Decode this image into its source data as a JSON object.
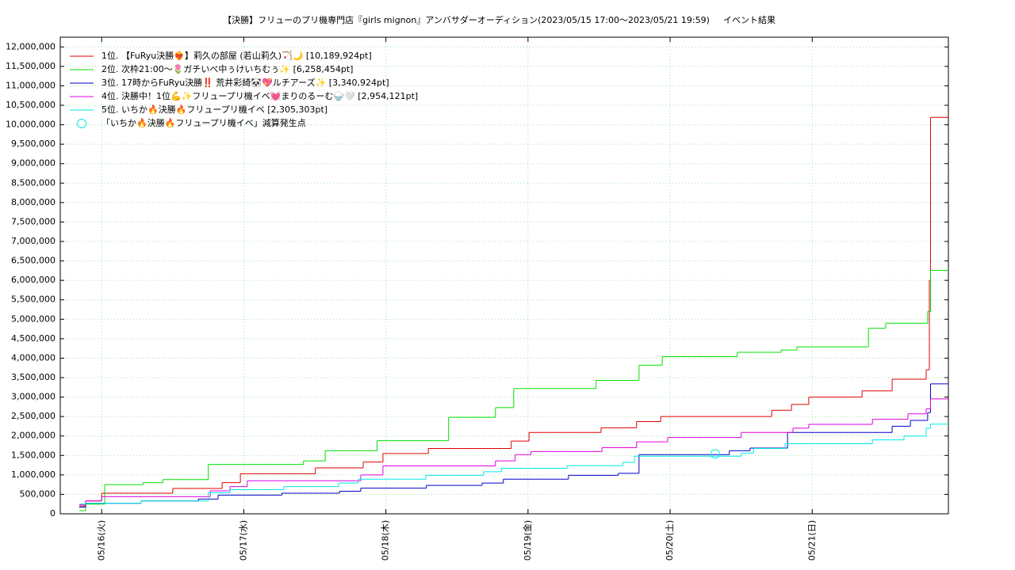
{
  "chart_data": {
    "type": "step",
    "title": "【決勝】フリューのプリ機専門店『girls mignon』アンバサダーオーディション(2023/05/15 17:00〜2023/05/21 19:59)",
    "subtitle": "イベント結果",
    "xlim": [
      "05/15 17:00",
      "05/21 23:00"
    ],
    "xticks": [
      {
        "value": "05/16 00:00",
        "label": "05/16(火)"
      },
      {
        "value": "05/17 00:00",
        "label": "05/17(水)"
      },
      {
        "value": "05/18 00:00",
        "label": "05/18(木)"
      },
      {
        "value": "05/19 00:00",
        "label": "05/19(金)"
      },
      {
        "value": "05/20 00:00",
        "label": "05/20(土)"
      },
      {
        "value": "05/21 00:00",
        "label": "05/21(日)"
      }
    ],
    "ylim": [
      0,
      12250000
    ],
    "yticks": [
      0,
      {
        "value": 500000,
        "label": "500,000"
      },
      {
        "value": 1000000,
        "label": "1,000,000"
      },
      {
        "value": 1500000,
        "label": "1,500,000"
      },
      {
        "value": 2000000,
        "label": "2,000,000"
      },
      {
        "value": 2500000,
        "label": "2,500,000"
      },
      {
        "value": 3000000,
        "label": "3,000,000"
      },
      {
        "value": 3500000,
        "label": "3,500,000"
      },
      {
        "value": 4000000,
        "label": "4,000,000"
      },
      {
        "value": 4500000,
        "label": "4,500,000"
      },
      {
        "value": 5000000,
        "label": "5,000,000"
      },
      {
        "value": 5500000,
        "label": "5,500,000"
      },
      {
        "value": 6000000,
        "label": "6,000,000"
      },
      {
        "value": 6500000,
        "label": "6,500,000"
      },
      {
        "value": 7000000,
        "label": "7,000,000"
      },
      {
        "value": 7500000,
        "label": "7,500,000"
      },
      {
        "value": 8000000,
        "label": "8,000,000"
      },
      {
        "value": 8500000,
        "label": "8,500,000"
      },
      {
        "value": 9000000,
        "label": "9,000,000"
      },
      {
        "value": 9500000,
        "label": "9,500,000"
      },
      {
        "value": 10000000,
        "label": "10,000,000"
      },
      {
        "value": 10500000,
        "label": "10,500,000"
      },
      {
        "value": 11000000,
        "label": "11,000,000"
      },
      {
        "value": 11500000,
        "label": "11,500,000"
      },
      {
        "value": 12000000,
        "label": "12,000,000"
      }
    ],
    "grid": true,
    "legend": "upper left",
    "series": [
      {
        "name": "1位. 【FuRyu決勝❤️‍🔥】莉久の部屋 (若山莉久)🏹🌙 [10,189,924pt]",
        "color": "#e00000",
        "x": [
          "05/15 20:13",
          "05/15 21:17",
          "05/16 00:00",
          "05/16 12:00",
          "05/16 20:20",
          "05/16 23:25",
          "05/17 12:05",
          "05/17 20:10",
          "05/17 23:30",
          "05/18 07:10",
          "05/18 21:10",
          "05/19 00:10",
          "05/19 12:20",
          "05/19 18:20",
          "05/19 22:25",
          "05/20 17:10",
          "05/20 20:30",
          "05/20 23:25",
          "05/21 08:25",
          "05/21 13:30",
          "05/21 19:15",
          "05/21 19:47",
          "05/21 19:59"
        ],
        "values": [
          200000,
          330000,
          530000,
          650000,
          800000,
          1030000,
          1180000,
          1330000,
          1550000,
          1680000,
          1870000,
          2090000,
          2210000,
          2370000,
          2500000,
          2660000,
          2810000,
          3000000,
          3160000,
          3460000,
          3700000,
          6000000,
          10189924
        ]
      },
      {
        "name": "2位. 次枠21:00〜🌷ガチいべ中ぅけいちむぅ✨ [6,258,454pt]",
        "color": "#00e000",
        "x": [
          "05/15 20:13",
          "05/15 21:17",
          "05/16 00:30",
          "05/16 07:00",
          "05/16 10:20",
          "05/16 18:00",
          "05/17 10:05",
          "05/17 13:45",
          "05/17 22:30",
          "05/18 10:35",
          "05/18 18:30",
          "05/18 21:35",
          "05/19 11:30",
          "05/19 18:45",
          "05/19 22:40",
          "05/20 11:20",
          "05/20 18:45",
          "05/20 21:25",
          "05/21 09:30",
          "05/21 12:25",
          "05/21 19:30",
          "05/21 19:59"
        ],
        "values": [
          80000,
          250000,
          750000,
          800000,
          880000,
          1270000,
          1360000,
          1620000,
          1880000,
          2480000,
          2730000,
          3220000,
          3430000,
          3820000,
          4040000,
          4150000,
          4210000,
          4290000,
          4770000,
          4900000,
          5200000,
          6258454
        ]
      },
      {
        "name": "3位. 17時からFuRyu決勝‼️ 荒井彩綺🐼💖ルチアーズ✨ [3,340,924pt]",
        "color": "#0000c8",
        "x": [
          "05/15 20:13",
          "05/15 21:17",
          "05/16 06:40",
          "05/16 16:20",
          "05/16 19:40",
          "05/17 06:25",
          "05/17 16:10",
          "05/17 19:45",
          "05/18 06:50",
          "05/18 16:15",
          "05/18 19:50",
          "05/19 06:50",
          "05/19 15:15",
          "05/19 18:45",
          "05/20 10:00",
          "05/20 13:30",
          "05/20 19:50",
          "05/21 13:30",
          "05/21 16:35",
          "05/21 19:30",
          "05/21 19:59"
        ],
        "values": [
          170000,
          270000,
          330000,
          380000,
          480000,
          530000,
          580000,
          660000,
          730000,
          790000,
          890000,
          990000,
          1040000,
          1520000,
          1620000,
          1690000,
          2090000,
          2250000,
          2400000,
          2600000,
          3340924
        ]
      },
      {
        "name": "4位. 決勝中！1位💪✨フリュープリ機イベ💓まりのるーむ🍚🤍 [2,954,121pt]",
        "color": "#e000e0",
        "x": [
          "05/15 20:13",
          "05/15 21:17",
          "05/16 00:00",
          "05/16 18:20",
          "05/16 21:40",
          "05/17 00:35",
          "05/17 19:45",
          "05/17 23:30",
          "05/18 18:30",
          "05/18 21:50",
          "05/19 00:30",
          "05/19 12:30",
          "05/19 18:20",
          "05/19 23:35",
          "05/20 12:00",
          "05/20 20:45",
          "05/20 23:25",
          "05/21 10:10",
          "05/21 16:10",
          "05/21 19:15",
          "05/21 19:59"
        ],
        "values": [
          230000,
          330000,
          440000,
          590000,
          700000,
          850000,
          1000000,
          1230000,
          1360000,
          1520000,
          1600000,
          1700000,
          1850000,
          1960000,
          2090000,
          2200000,
          2300000,
          2430000,
          2570000,
          2700000,
          2954121
        ]
      },
      {
        "name": "5位. いちか🔥決勝🔥フリュープリ機イベ [2,305,303pt]",
        "color": "#00e8e8",
        "x": [
          "05/15 20:13",
          "05/15 21:17",
          "05/16 06:40",
          "05/16 18:00",
          "05/16 21:40",
          "05/17 06:45",
          "05/17 16:00",
          "05/17 19:20",
          "05/18 06:45",
          "05/18 16:30",
          "05/18 19:30",
          "05/19 06:35",
          "05/19 16:00",
          "05/19 18:00",
          "05/20 12:00",
          "05/20 14:05",
          "05/20 19:25",
          "05/21 10:10",
          "05/21 15:30",
          "05/21 19:15",
          "05/21 19:59"
        ],
        "values": [
          250000,
          270000,
          330000,
          540000,
          620000,
          700000,
          790000,
          890000,
          990000,
          1080000,
          1170000,
          1240000,
          1320000,
          1480000,
          1560000,
          1680000,
          1800000,
          1900000,
          2000000,
          2200000,
          2305303
        ]
      }
    ],
    "annotation": {
      "name": "「いちか🔥決勝🔥フリュープリ機イベ」減算発生点",
      "color": "#00e8e8",
      "x": "05/20 07:37",
      "value": 1540000
    }
  }
}
